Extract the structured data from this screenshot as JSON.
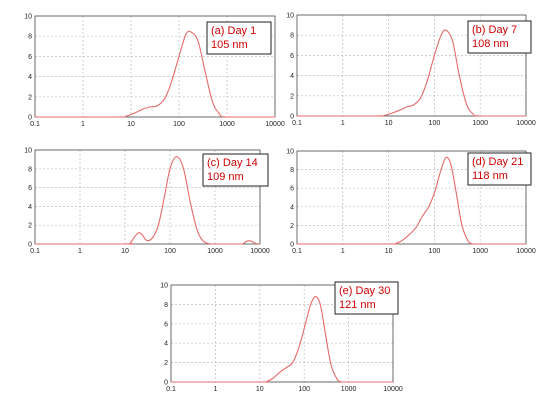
{
  "chart_data": [
    {
      "type": "line",
      "xscale": "log",
      "xlim": [
        0.1,
        10000
      ],
      "ylim": [
        0,
        10
      ],
      "xticks": [
        "0.1",
        "1",
        "10",
        "100",
        "1000",
        "10000"
      ],
      "yticks": [
        "0",
        "2",
        "4",
        "6",
        "8",
        "10"
      ],
      "grid": true,
      "label_lines": [
        "(a) Day 1",
        "105 nm"
      ],
      "series": [
        {
          "x": [
            0.1,
            5,
            8,
            12,
            18,
            25,
            35,
            50,
            70,
            100,
            140,
            180,
            250,
            350,
            500,
            700,
            1000,
            10000
          ],
          "y": [
            0,
            0,
            0.1,
            0.4,
            0.8,
            1.0,
            1.1,
            1.8,
            3.5,
            6.0,
            8.2,
            8.4,
            7.5,
            4.5,
            1.5,
            0.3,
            0,
            0
          ]
        }
      ]
    },
    {
      "type": "line",
      "xscale": "log",
      "xlim": [
        0.1,
        10000
      ],
      "ylim": [
        0,
        10
      ],
      "xticks": [
        "0.1",
        "1",
        "10",
        "100",
        "1000",
        "10000"
      ],
      "yticks": [
        "0",
        "2",
        "4",
        "6",
        "8",
        "10"
      ],
      "grid": true,
      "label_lines": [
        "(b) Day 7",
        "108 nm"
      ],
      "series": [
        {
          "x": [
            0.1,
            5,
            8,
            12,
            18,
            25,
            35,
            50,
            70,
            100,
            140,
            180,
            250,
            350,
            500,
            700,
            1000,
            10000
          ],
          "y": [
            0,
            0,
            0.05,
            0.3,
            0.6,
            0.9,
            1.1,
            1.8,
            3.5,
            6.0,
            8.0,
            8.5,
            7.4,
            4.0,
            1.2,
            0.2,
            0,
            0
          ]
        }
      ]
    },
    {
      "type": "line",
      "xscale": "log",
      "xlim": [
        0.1,
        10000
      ],
      "ylim": [
        0,
        10
      ],
      "xticks": [
        "0.1",
        "1",
        "10",
        "100",
        "1000",
        "10000"
      ],
      "yticks": [
        "0",
        "2",
        "4",
        "6",
        "8",
        "10"
      ],
      "grid": true,
      "label_lines": [
        "(c) Day 14",
        "109 nm"
      ],
      "series": [
        {
          "x": [
            0.1,
            10,
            13,
            16,
            20,
            24,
            30,
            40,
            55,
            75,
            100,
            140,
            200,
            280,
            400,
            550,
            800,
            1000,
            2000,
            4000,
            5000,
            6500,
            8000,
            10000
          ],
          "y": [
            0,
            0,
            0.1,
            0.7,
            1.2,
            1.0,
            0.4,
            0.6,
            2.0,
            5.0,
            8.0,
            9.3,
            8.0,
            4.5,
            1.5,
            0.3,
            0,
            0,
            0,
            0,
            0.3,
            0.3,
            0.05,
            0
          ]
        }
      ]
    },
    {
      "type": "line",
      "xscale": "log",
      "xlim": [
        0.1,
        10000
      ],
      "ylim": [
        0,
        10
      ],
      "xticks": [
        "0.1",
        "1",
        "10",
        "100",
        "1000",
        "10000"
      ],
      "yticks": [
        "0",
        "2",
        "4",
        "6",
        "8",
        "10"
      ],
      "grid": true,
      "label_lines": [
        "(d) Day 21",
        "118 nm"
      ],
      "series": [
        {
          "x": [
            0.1,
            10,
            15,
            20,
            28,
            40,
            55,
            75,
            100,
            140,
            180,
            230,
            300,
            400,
            550,
            700,
            1000,
            10000
          ],
          "y": [
            0,
            0,
            0.1,
            0.4,
            1.0,
            1.8,
            3.0,
            4.0,
            5.5,
            8.0,
            9.3,
            8.5,
            5.5,
            2.0,
            0.3,
            0,
            0,
            0
          ]
        }
      ]
    },
    {
      "type": "line",
      "xscale": "log",
      "xlim": [
        0.1,
        10000
      ],
      "ylim": [
        0,
        10
      ],
      "xticks": [
        "0.1",
        "1",
        "10",
        "100",
        "1000",
        "10000"
      ],
      "yticks": [
        "0",
        "2",
        "4",
        "6",
        "8",
        "10"
      ],
      "grid": true,
      "label_lines": [
        "(e) Day 30",
        "121 nm"
      ],
      "series": [
        {
          "x": [
            0.1,
            10,
            15,
            20,
            28,
            40,
            55,
            75,
            100,
            140,
            180,
            230,
            300,
            400,
            550,
            700,
            1000,
            10000
          ],
          "y": [
            0,
            0,
            0.1,
            0.4,
            1.0,
            1.5,
            2.0,
            3.5,
            5.5,
            8.0,
            8.8,
            8.0,
            5.0,
            1.8,
            0.3,
            0,
            0,
            0
          ]
        }
      ]
    }
  ]
}
